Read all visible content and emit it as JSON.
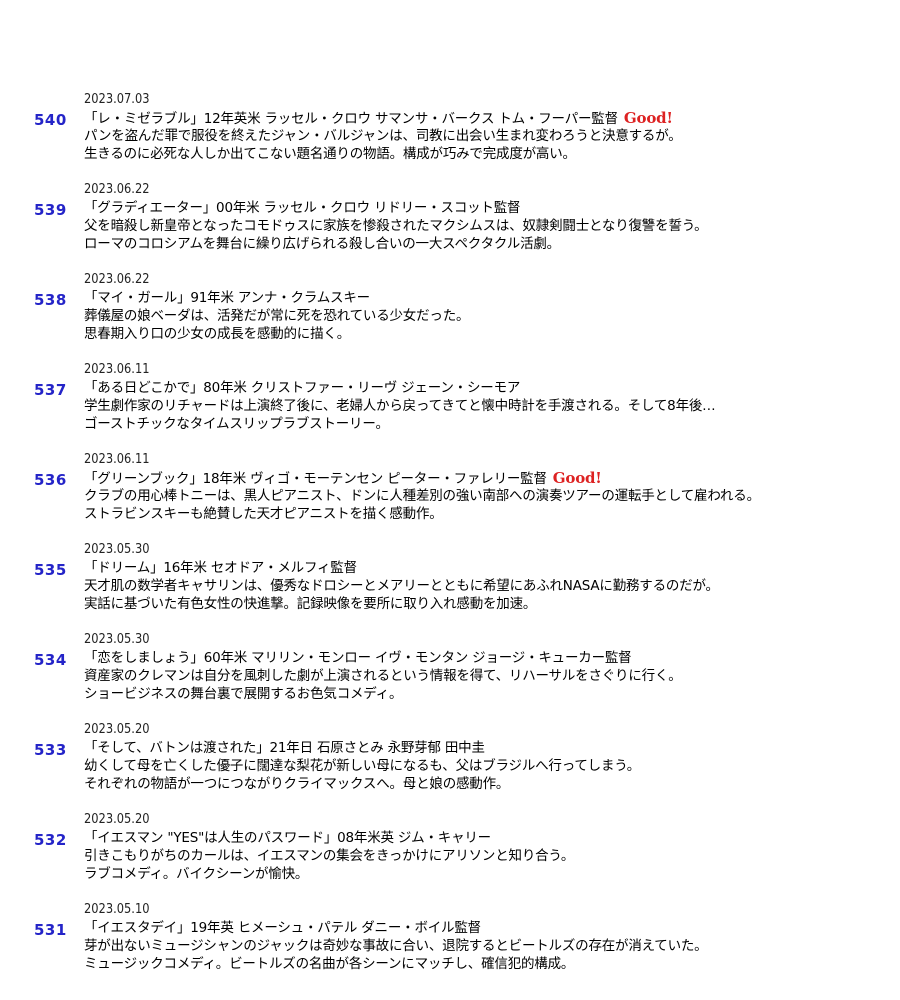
{
  "entries": [
    {
      "number": "540",
      "date": "2023.07.03",
      "title": "「レ・ミゼラブル」12年英米 ラッセル・クロウ サマンサ・バークス トム・フーパー監督",
      "badge": "Good!",
      "desc1": "パンを盗んだ罪で服役を終えたジャン・バルジャンは、司教に出会い生まれ変わろうと決意するが。",
      "desc2": "生きるのに必死な人しか出てこない題名通りの物語。構成が巧みで完成度が高い。"
    },
    {
      "number": "539",
      "date": "2023.06.22",
      "title": "「グラディエーター」00年米 ラッセル・クロウ リドリー・スコット監督",
      "badge": "",
      "desc1": "父を暗殺し新皇帝となったコモドゥスに家族を惨殺されたマクシムスは、奴隷剣闘士となり復讐を誓う。",
      "desc2": "ローマのコロシアムを舞台に繰り広げられる殺し合いの一大スペクタクル活劇。"
    },
    {
      "number": "538",
      "date": "2023.06.22",
      "title": "「マイ・ガール」91年米 アンナ・クラムスキー",
      "badge": "",
      "desc1": "葬儀屋の娘ベーダは、活発だが常に死を恐れている少女だった。",
      "desc2": "思春期入り口の少女の成長を感動的に描く。"
    },
    {
      "number": "537",
      "date": "2023.06.11",
      "title": "「ある日どこかで」80年米 クリストファー・リーヴ ジェーン・シーモア",
      "badge": "",
      "desc1": "学生劇作家のリチャードは上演終了後に、老婦人から戻ってきてと懐中時計を手渡される。そして8年後…",
      "desc2": "ゴーストチックなタイムスリップラブストーリー。"
    },
    {
      "number": "536",
      "date": "2023.06.11",
      "title": "「グリーンブック」18年米 ヴィゴ・モーテンセン ピーター・ファレリー監督",
      "badge": "Good!",
      "desc1": "クラブの用心棒トニーは、黒人ピアニスト、ドンに人種差別の強い南部への演奏ツアーの運転手として雇われる。",
      "desc2": "ストラビンスキーも絶賛した天才ピアニストを描く感動作。"
    },
    {
      "number": "535",
      "date": "2023.05.30",
      "title": "「ドリーム」16年米 セオドア・メルフィ監督",
      "badge": "",
      "desc1": "天才肌の数学者キャサリンは、優秀なドロシーとメアリーとともに希望にあふれNASAに勤務するのだが。",
      "desc2": "実話に基づいた有色女性の快進撃。記録映像を要所に取り入れ感動を加速。"
    },
    {
      "number": "534",
      "date": "2023.05.30",
      "title": "「恋をしましょう」60年米 マリリン・モンロー イヴ・モンタン ジョージ・キューカー監督",
      "badge": "",
      "desc1": "資産家のクレマンは自分を風刺した劇が上演されるという情報を得て、リハーサルをさぐりに行く。",
      "desc2": "ショービジネスの舞台裏で展開するお色気コメディ。"
    },
    {
      "number": "533",
      "date": "2023.05.20",
      "title": "「そして、バトンは渡された」21年日 石原さとみ 永野芽郁 田中圭",
      "badge": "",
      "desc1": "幼くして母を亡くした優子に闊達な梨花が新しい母になるも、父はブラジルへ行ってしまう。",
      "desc2": "それぞれの物語が一つにつながりクライマックスへ。母と娘の感動作。"
    },
    {
      "number": "532",
      "date": "2023.05.20",
      "title": "「イエスマン \"YES\"は人生のパスワード」08年米英 ジム・キャリー",
      "badge": "",
      "desc1": "引きこもりがちのカールは、イエスマンの集会をきっかけにアリソンと知り合う。",
      "desc2": "ラブコメディ。バイクシーンが愉快。"
    },
    {
      "number": "531",
      "date": "2023.05.10",
      "title": "「イエスタデイ」19年英 ヒメーシュ・パテル ダニー・ボイル監督",
      "badge": "",
      "desc1": "芽が出ないミュージシャンのジャックは奇妙な事故に合い、退院するとビートルズの存在が消えていた。",
      "desc2": "ミュージックコメディ。ビートルズの名曲が各シーンにマッチし、確信犯的構成。"
    }
  ]
}
